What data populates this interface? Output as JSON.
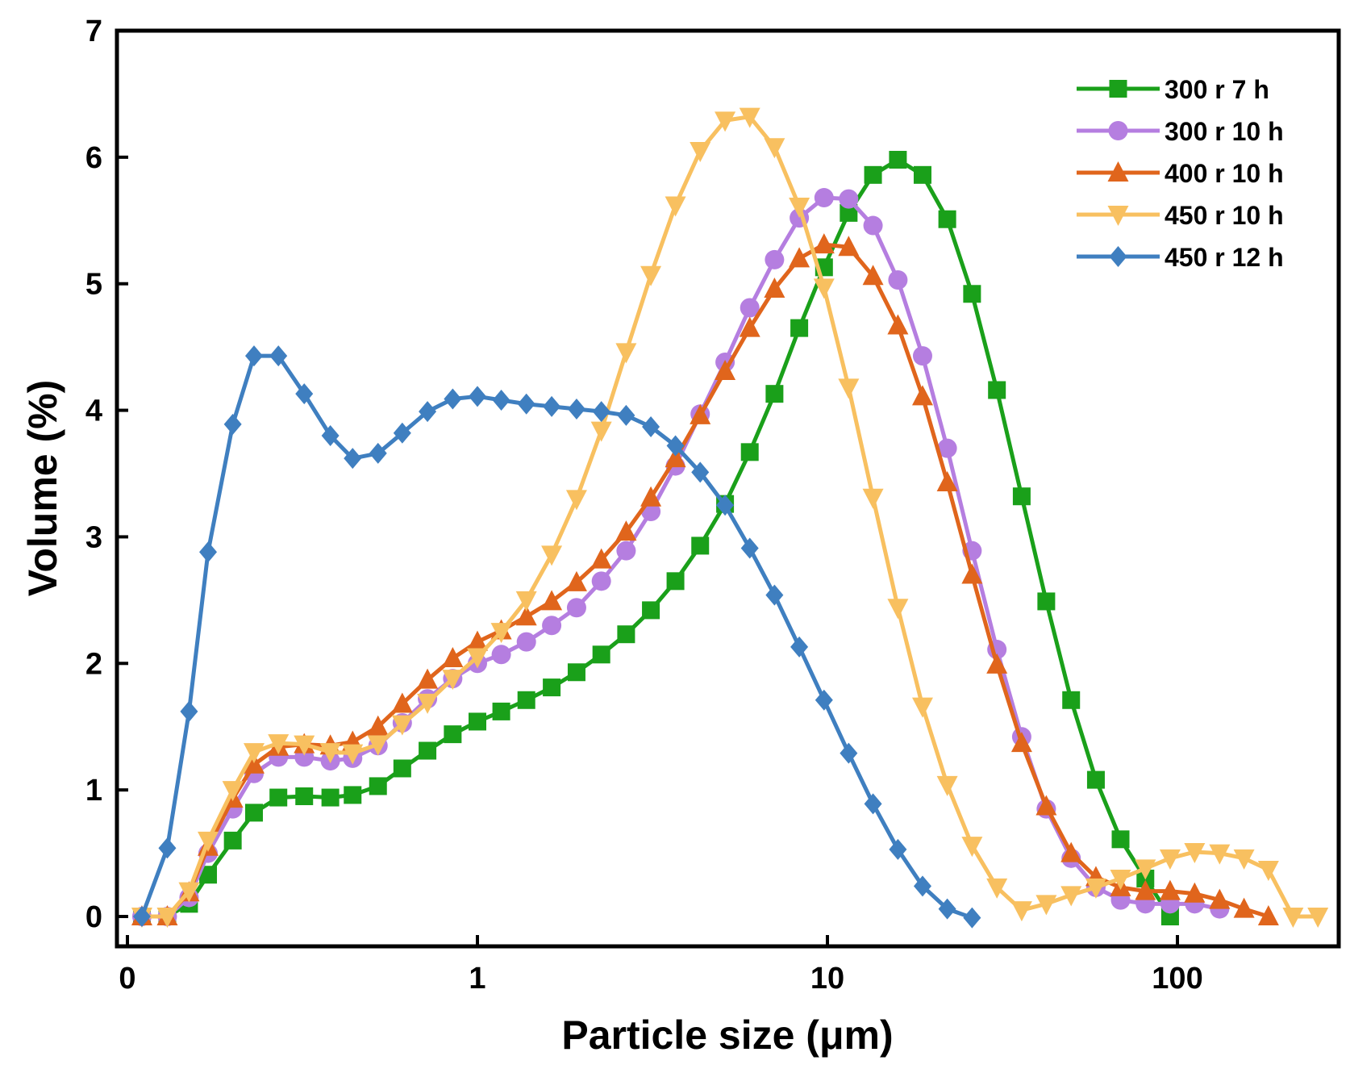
{
  "chart_data": {
    "type": "line",
    "title": "",
    "xlabel": "Particle size (μm)",
    "ylabel": "Volume (%)",
    "x_scale": "log",
    "xlim": [
      0.1,
      300
    ],
    "ylim": [
      -0.2,
      7
    ],
    "x_ticks": [
      {
        "value": 0.1,
        "label": "0"
      },
      {
        "value": 1,
        "label": "1"
      },
      {
        "value": 10,
        "label": "10"
      },
      {
        "value": 100,
        "label": "100"
      }
    ],
    "y_ticks": [
      {
        "value": 0,
        "label": "0"
      },
      {
        "value": 1,
        "label": "1"
      },
      {
        "value": 2,
        "label": "2"
      },
      {
        "value": 3,
        "label": "3"
      },
      {
        "value": 4,
        "label": "4"
      },
      {
        "value": 5,
        "label": "5"
      },
      {
        "value": 6,
        "label": "6"
      },
      {
        "value": 7,
        "label": "7"
      }
    ],
    "grid": false,
    "legend_position": "top-right",
    "series": [
      {
        "name": "300 r 7 h",
        "color": "#1aa01a",
        "marker": "square",
        "x": [
          0.11,
          0.13,
          0.15,
          0.17,
          0.2,
          0.23,
          0.27,
          0.32,
          0.38,
          0.44,
          0.52,
          0.61,
          0.72,
          0.85,
          1.0,
          1.17,
          1.38,
          1.63,
          1.92,
          2.26,
          2.66,
          3.13,
          3.68,
          4.33,
          5.1,
          6.0,
          7.06,
          8.31,
          9.78,
          11.5,
          13.5,
          15.9,
          18.7,
          22.0,
          25.9,
          30.5,
          35.9,
          42.2,
          49.7,
          58.5,
          68.8,
          81.0,
          95.3
        ],
        "values": [
          0.0,
          0.0,
          0.1,
          0.33,
          0.6,
          0.82,
          0.94,
          0.95,
          0.94,
          0.96,
          1.03,
          1.17,
          1.31,
          1.44,
          1.54,
          1.62,
          1.71,
          1.81,
          1.93,
          2.07,
          2.23,
          2.42,
          2.65,
          2.93,
          3.26,
          3.67,
          4.13,
          4.65,
          5.13,
          5.56,
          5.86,
          5.98,
          5.86,
          5.51,
          4.92,
          4.16,
          3.32,
          2.49,
          1.71,
          1.08,
          0.61,
          0.3,
          0.0
        ]
      },
      {
        "name": "300 r 10 h",
        "color": "#b57ee0",
        "marker": "circle",
        "x": [
          0.11,
          0.13,
          0.15,
          0.17,
          0.2,
          0.23,
          0.27,
          0.32,
          0.38,
          0.44,
          0.52,
          0.61,
          0.72,
          0.85,
          1.0,
          1.17,
          1.38,
          1.63,
          1.92,
          2.26,
          2.66,
          3.13,
          3.68,
          4.33,
          5.1,
          6.0,
          7.06,
          8.31,
          9.78,
          11.5,
          13.5,
          15.9,
          18.7,
          22.0,
          25.9,
          30.5,
          35.9,
          42.2,
          49.7,
          58.5,
          68.8,
          81.0,
          95.3,
          112,
          132
        ],
        "values": [
          0.0,
          0.0,
          0.15,
          0.5,
          0.85,
          1.13,
          1.26,
          1.26,
          1.23,
          1.25,
          1.35,
          1.53,
          1.72,
          1.88,
          2.0,
          2.07,
          2.17,
          2.3,
          2.44,
          2.65,
          2.89,
          3.2,
          3.56,
          3.97,
          4.38,
          4.81,
          5.19,
          5.52,
          5.68,
          5.67,
          5.46,
          5.03,
          4.43,
          3.7,
          2.89,
          2.11,
          1.42,
          0.85,
          0.46,
          0.23,
          0.13,
          0.1,
          0.1,
          0.1,
          0.06
        ]
      },
      {
        "name": "400 r 10 h",
        "color": "#e0651c",
        "marker": "triangle-up",
        "x": [
          0.11,
          0.13,
          0.15,
          0.17,
          0.2,
          0.23,
          0.27,
          0.32,
          0.38,
          0.44,
          0.52,
          0.61,
          0.72,
          0.85,
          1.0,
          1.17,
          1.38,
          1.63,
          1.92,
          2.26,
          2.66,
          3.13,
          3.68,
          4.33,
          5.1,
          6.0,
          7.06,
          8.31,
          9.78,
          11.5,
          13.5,
          15.9,
          18.7,
          22.0,
          25.9,
          30.5,
          35.9,
          42.2,
          49.7,
          58.5,
          68.8,
          81.0,
          95.3,
          112,
          132,
          155,
          182
        ],
        "values": [
          0.0,
          0.0,
          0.19,
          0.55,
          0.93,
          1.2,
          1.34,
          1.36,
          1.35,
          1.38,
          1.5,
          1.68,
          1.87,
          2.04,
          2.17,
          2.26,
          2.37,
          2.49,
          2.64,
          2.82,
          3.04,
          3.31,
          3.62,
          3.96,
          4.31,
          4.65,
          4.96,
          5.2,
          5.31,
          5.29,
          5.06,
          4.67,
          4.11,
          3.43,
          2.7,
          1.99,
          1.37,
          0.87,
          0.5,
          0.31,
          0.23,
          0.2,
          0.2,
          0.18,
          0.13,
          0.06,
          0.0
        ]
      },
      {
        "name": "450 r 10 h",
        "color": "#f8c060",
        "marker": "triangle-down",
        "x": [
          0.11,
          0.13,
          0.15,
          0.17,
          0.2,
          0.23,
          0.27,
          0.32,
          0.38,
          0.44,
          0.52,
          0.61,
          0.72,
          0.85,
          1.0,
          1.17,
          1.38,
          1.63,
          1.92,
          2.26,
          2.66,
          3.13,
          3.68,
          4.33,
          5.1,
          6.0,
          7.06,
          8.31,
          9.78,
          11.5,
          13.5,
          15.9,
          18.7,
          22.0,
          25.9,
          30.5,
          35.9,
          42.2,
          49.7,
          58.5,
          68.8,
          81.0,
          95.3,
          112,
          132,
          155,
          182,
          214,
          252
        ],
        "values": [
          0.0,
          0.0,
          0.2,
          0.6,
          1.0,
          1.3,
          1.37,
          1.36,
          1.3,
          1.29,
          1.36,
          1.52,
          1.69,
          1.88,
          2.05,
          2.25,
          2.5,
          2.86,
          3.3,
          3.84,
          4.46,
          5.07,
          5.62,
          6.05,
          6.29,
          6.32,
          6.08,
          5.61,
          4.97,
          4.18,
          3.31,
          2.44,
          1.66,
          1.04,
          0.56,
          0.23,
          0.05,
          0.1,
          0.17,
          0.23,
          0.3,
          0.38,
          0.46,
          0.51,
          0.5,
          0.46,
          0.37,
          0.0,
          0.0
        ]
      },
      {
        "name": "450 r 12 h",
        "color": "#3f7fc0",
        "marker": "diamond",
        "x": [
          0.11,
          0.13,
          0.15,
          0.17,
          0.2,
          0.23,
          0.27,
          0.32,
          0.38,
          0.44,
          0.52,
          0.61,
          0.72,
          0.85,
          1.0,
          1.17,
          1.38,
          1.63,
          1.92,
          2.26,
          2.66,
          3.13,
          3.68,
          4.33,
          5.1,
          6.0,
          7.06,
          8.31,
          9.78,
          11.5,
          13.5,
          15.9,
          18.7,
          22.0,
          25.9
        ],
        "values": [
          0.0,
          0.54,
          1.62,
          2.88,
          3.89,
          4.43,
          4.43,
          4.13,
          3.8,
          3.62,
          3.66,
          3.82,
          3.99,
          4.09,
          4.11,
          4.08,
          4.05,
          4.03,
          4.01,
          3.99,
          3.96,
          3.87,
          3.72,
          3.51,
          3.25,
          2.91,
          2.54,
          2.13,
          1.71,
          1.29,
          0.89,
          0.53,
          0.24,
          0.06,
          -0.01
        ]
      }
    ]
  }
}
